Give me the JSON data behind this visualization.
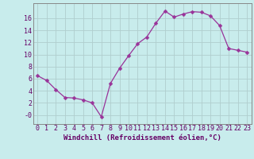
{
  "x": [
    0,
    1,
    2,
    3,
    4,
    5,
    6,
    7,
    8,
    9,
    10,
    11,
    12,
    13,
    14,
    15,
    16,
    17,
    18,
    19,
    20,
    21,
    22,
    23
  ],
  "y": [
    6.5,
    5.7,
    4.2,
    2.9,
    2.8,
    2.5,
    2.0,
    -0.3,
    5.2,
    7.7,
    9.8,
    11.8,
    12.9,
    15.2,
    17.2,
    16.2,
    16.7,
    17.1,
    17.0,
    16.4,
    14.8,
    11.0,
    10.7,
    10.4
  ],
  "line_color": "#993399",
  "marker": "D",
  "marker_size": 2.5,
  "bg_color": "#c8ecec",
  "grid_color": "#b0cece",
  "xlabel": "Windchill (Refroidissement éolien,°C)",
  "ylabel": "",
  "ylim": [
    -1.5,
    18.5
  ],
  "xlim": [
    -0.5,
    23.5
  ],
  "yticks": [
    0,
    2,
    4,
    6,
    8,
    10,
    12,
    14,
    16
  ],
  "ytick_labels": [
    "-0",
    "2",
    "4",
    "6",
    "8",
    "10",
    "12",
    "14",
    "16"
  ],
  "xticks": [
    0,
    1,
    2,
    3,
    4,
    5,
    6,
    7,
    8,
    9,
    10,
    11,
    12,
    13,
    14,
    15,
    16,
    17,
    18,
    19,
    20,
    21,
    22,
    23
  ],
  "label_color": "#660066",
  "tick_color": "#660066",
  "axis_color": "#888888",
  "font_size": 6,
  "xlabel_fontsize": 6.5,
  "title": ""
}
